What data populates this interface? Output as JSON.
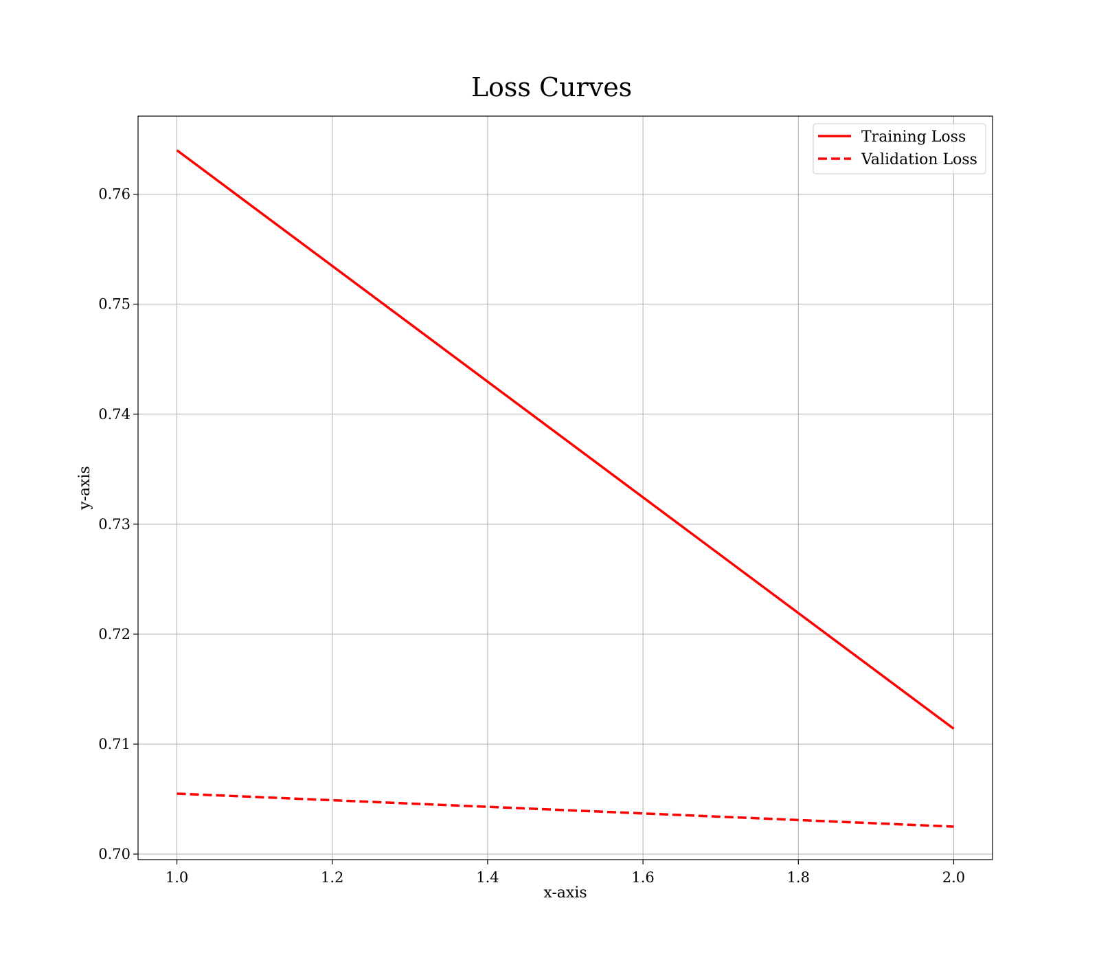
{
  "chart_data": {
    "type": "line",
    "title": "Loss Curves",
    "xlabel": "x-axis",
    "ylabel": "y-axis",
    "xlim": [
      0.95,
      2.05
    ],
    "ylim": [
      0.6995,
      0.7671
    ],
    "xticks": [
      1.0,
      1.2,
      1.4,
      1.6,
      1.8,
      2.0
    ],
    "xtick_labels": [
      "1.0",
      "1.2",
      "1.4",
      "1.6",
      "1.8",
      "2.0"
    ],
    "yticks": [
      0.7,
      0.71,
      0.72,
      0.73,
      0.74,
      0.75,
      0.76
    ],
    "ytick_labels": [
      "0.70",
      "0.71",
      "0.72",
      "0.73",
      "0.74",
      "0.75",
      "0.76"
    ],
    "grid": true,
    "legend_position": "top-right",
    "series": [
      {
        "name": "Training Loss",
        "x": [
          1.0,
          2.0
        ],
        "y": [
          0.764,
          0.7114
        ],
        "color": "#ff0000",
        "style": "solid"
      },
      {
        "name": "Validation Loss",
        "x": [
          1.0,
          2.0
        ],
        "y": [
          0.7055,
          0.7025
        ],
        "color": "#ff0000",
        "style": "dashed"
      }
    ]
  }
}
